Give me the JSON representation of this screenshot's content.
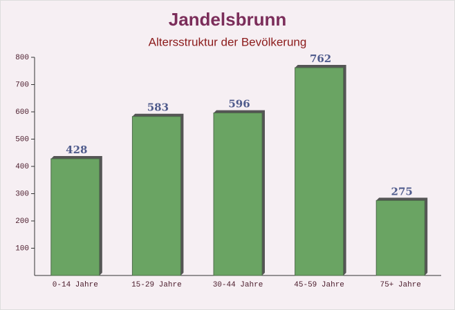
{
  "chart_data": {
    "type": "bar",
    "title": "Jandelsbrunn",
    "subtitle": "Altersstruktur der Bevölkerung",
    "categories": [
      "0-14 Jahre",
      "15-29 Jahre",
      "30-44 Jahre",
      "45-59 Jahre",
      "75+ Jahre"
    ],
    "values": [
      428,
      583,
      596,
      762,
      275
    ],
    "color": "#6aa463",
    "ylim": [
      0,
      800
    ],
    "yticks": [
      100,
      200,
      300,
      400,
      500,
      600,
      700,
      800
    ]
  }
}
